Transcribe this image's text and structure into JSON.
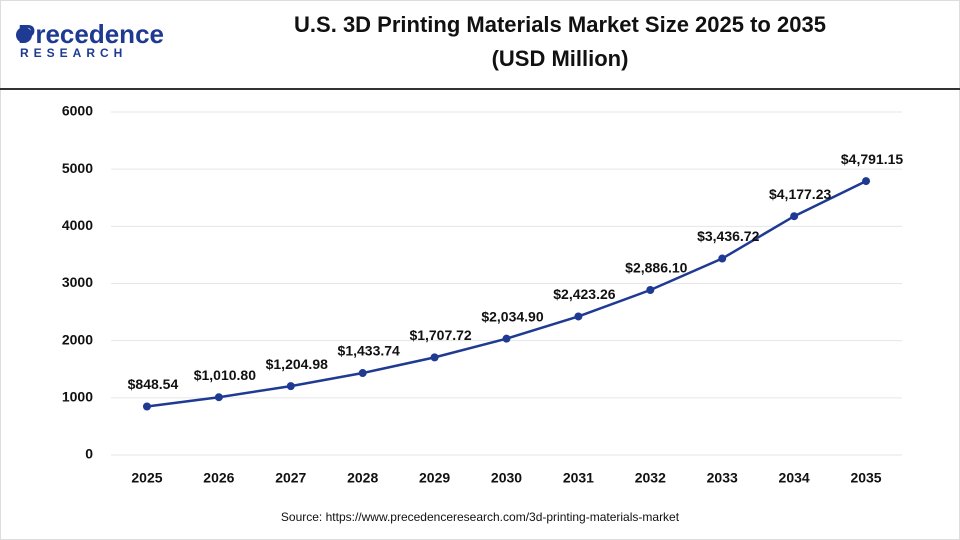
{
  "logo": {
    "name": "Precedence",
    "tagline": "RESEARCH"
  },
  "chart_data": {
    "type": "line",
    "title": "U.S. 3D Printing Materials Market Size 2025 to 2035",
    "subtitle": "(USD Million)",
    "categories": [
      "2025",
      "2026",
      "2027",
      "2028",
      "2029",
      "2030",
      "2031",
      "2032",
      "2033",
      "2034",
      "2035"
    ],
    "values": [
      848.54,
      1010.8,
      1204.98,
      1433.74,
      1707.72,
      2034.9,
      2423.26,
      2886.1,
      3436.72,
      4177.23,
      4791.15
    ],
    "value_labels": [
      "$848.54",
      "$1,010.80",
      "$1,204.98",
      "$1,433.74",
      "$1,707.72",
      "$2,034.90",
      "$2,423.26",
      "$2,886.10",
      "$3,436.72",
      "$4,177.23",
      "$4,791.15"
    ],
    "color": "#1f3a93",
    "ylim": [
      0,
      6000
    ],
    "yticks": [
      0,
      1000,
      2000,
      3000,
      4000,
      5000,
      6000
    ],
    "grid": true,
    "source": "Source: https://www.precedenceresearch.com/3d-printing-materials-market"
  }
}
